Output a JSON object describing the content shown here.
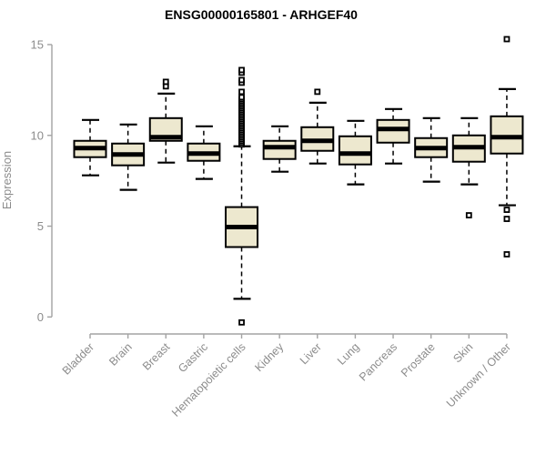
{
  "chart_data": {
    "type": "boxplot",
    "title": "ENSG00000165801 - ARHGEF40",
    "ylabel": "Expression",
    "xlabel": "",
    "ylim": [
      0,
      15
    ],
    "yticks": [
      0,
      5,
      10,
      15
    ],
    "grid": false,
    "legend_position": "none",
    "categories": [
      "Bladder",
      "Brain",
      "Breast",
      "Gastric",
      "Hematopoietic cells",
      "Kidney",
      "Liver",
      "Lung",
      "Pancreas",
      "Prostate",
      "Skin",
      "Unknown / Other"
    ],
    "series": [
      {
        "name": "Bladder",
        "whisker_low": 7.8,
        "q1": 8.8,
        "median": 9.3,
        "q3": 9.7,
        "whisker_high": 10.85,
        "outliers": []
      },
      {
        "name": "Brain",
        "whisker_low": 7.0,
        "q1": 8.35,
        "median": 8.95,
        "q3": 9.55,
        "whisker_high": 10.6,
        "outliers": []
      },
      {
        "name": "Breast",
        "whisker_low": 8.5,
        "q1": 9.7,
        "median": 9.9,
        "q3": 10.95,
        "whisker_high": 12.3,
        "outliers": [
          12.7,
          12.95
        ]
      },
      {
        "name": "Gastric",
        "whisker_low": 7.6,
        "q1": 8.6,
        "median": 9.0,
        "q3": 9.55,
        "whisker_high": 10.5,
        "outliers": []
      },
      {
        "name": "Hematopoietic cells",
        "whisker_low": 1.0,
        "q1": 3.85,
        "median": 4.95,
        "q3": 6.05,
        "whisker_high": 9.4,
        "outliers": [
          -0.3,
          9.5,
          9.6,
          9.7,
          9.8,
          9.9,
          10.0,
          10.1,
          10.2,
          10.3,
          10.4,
          10.5,
          10.6,
          10.7,
          10.8,
          10.9,
          11.0,
          11.1,
          11.2,
          11.3,
          11.4,
          11.5,
          11.6,
          11.7,
          11.8,
          11.9,
          12.0,
          12.1,
          12.4,
          12.9,
          13.05,
          13.45,
          13.6
        ]
      },
      {
        "name": "Kidney",
        "whisker_low": 8.0,
        "q1": 8.7,
        "median": 9.35,
        "q3": 9.7,
        "whisker_high": 10.5,
        "outliers": []
      },
      {
        "name": "Liver",
        "whisker_low": 8.45,
        "q1": 9.15,
        "median": 9.7,
        "q3": 10.45,
        "whisker_high": 11.8,
        "outliers": [
          12.4
        ]
      },
      {
        "name": "Lung",
        "whisker_low": 7.3,
        "q1": 8.4,
        "median": 9.0,
        "q3": 9.95,
        "whisker_high": 10.8,
        "outliers": []
      },
      {
        "name": "Pancreas",
        "whisker_low": 8.45,
        "q1": 9.6,
        "median": 10.35,
        "q3": 10.85,
        "whisker_high": 11.45,
        "outliers": []
      },
      {
        "name": "Prostate",
        "whisker_low": 7.45,
        "q1": 8.8,
        "median": 9.3,
        "q3": 9.85,
        "whisker_high": 10.95,
        "outliers": []
      },
      {
        "name": "Skin",
        "whisker_low": 7.3,
        "q1": 8.55,
        "median": 9.35,
        "q3": 10.0,
        "whisker_high": 10.95,
        "outliers": [
          5.6
        ]
      },
      {
        "name": "Unknown / Other",
        "whisker_low": 6.15,
        "q1": 9.0,
        "median": 9.9,
        "q3": 11.05,
        "whisker_high": 12.55,
        "outliers": [
          15.3,
          5.9,
          5.4,
          3.45
        ]
      }
    ]
  },
  "colors": {
    "background": "#ffffff",
    "box_fill": "#ede8cf",
    "box_stroke": "#000000",
    "median_line": "#000000",
    "axis_line": "#a3a3a3",
    "tick_text": "#8c8c8c",
    "title_text": "#000000"
  }
}
